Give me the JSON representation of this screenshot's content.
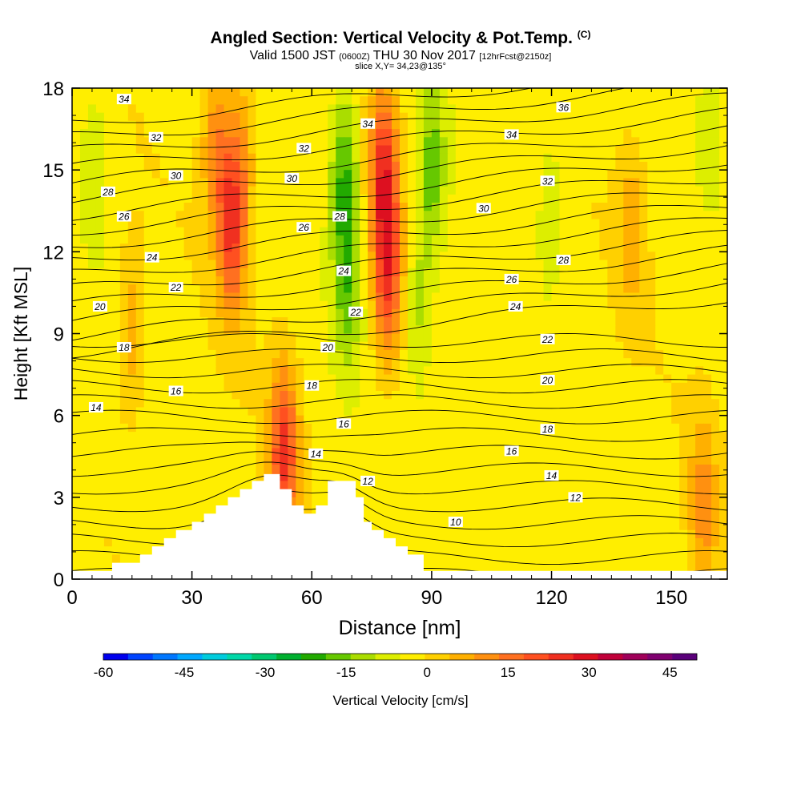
{
  "header": {
    "title": "Angled Section: Vertical Velocity & Pot.Temp.",
    "title_units": "(C)",
    "valid_prefix": "Valid 1500 JST",
    "valid_utc": "(0600Z)",
    "valid_date": "THU 30 Nov 2017",
    "forecast": "[12hrFcst@2150z]",
    "slice": "slice X,Y= 34,23@135°"
  },
  "chart_data": {
    "type": "heatmap",
    "xlabel": "Distance [nm]",
    "ylabel": "Height [Kft MSL]",
    "xlim": [
      0,
      164
    ],
    "ylim": [
      0,
      18
    ],
    "x_ticks": [
      0,
      30,
      60,
      90,
      120,
      150
    ],
    "y_ticks": [
      0,
      3,
      6,
      9,
      12,
      15,
      18
    ],
    "colorbar": {
      "label": "Vertical Velocity [cm/s]",
      "ticks": [
        -60,
        -45,
        -30,
        -15,
        0,
        15,
        30,
        45
      ],
      "range": [
        -60,
        50
      ],
      "step": 5,
      "colors": [
        "#0000ee",
        "#0044ff",
        "#0077ff",
        "#00a8ff",
        "#00ccdd",
        "#00d8a8",
        "#00c870",
        "#00b030",
        "#22aa00",
        "#66c800",
        "#aadd00",
        "#ddee00",
        "#ffee00",
        "#ffd000",
        "#ffb000",
        "#ff9010",
        "#ff7020",
        "#ff5020",
        "#f03020",
        "#dd1020",
        "#c0003a",
        "#a0005a",
        "#800070",
        "#5a007a"
      ]
    },
    "terrain_nm_kft": [
      [
        0,
        0.3
      ],
      [
        10,
        0.3
      ],
      [
        10,
        0.6
      ],
      [
        17,
        0.6
      ],
      [
        17,
        0.9
      ],
      [
        20,
        0.9
      ],
      [
        20,
        1.2
      ],
      [
        23,
        1.2
      ],
      [
        23,
        1.5
      ],
      [
        26,
        1.5
      ],
      [
        26,
        1.8
      ],
      [
        30,
        1.8
      ],
      [
        30,
        2.1
      ],
      [
        33,
        2.1
      ],
      [
        33,
        2.4
      ],
      [
        36,
        2.4
      ],
      [
        36,
        2.7
      ],
      [
        39,
        2.7
      ],
      [
        39,
        3.0
      ],
      [
        42,
        3.0
      ],
      [
        42,
        3.3
      ],
      [
        45,
        3.3
      ],
      [
        45,
        3.6
      ],
      [
        48,
        3.6
      ],
      [
        48,
        3.85
      ],
      [
        52,
        3.85
      ],
      [
        52,
        3.3
      ],
      [
        55,
        3.3
      ],
      [
        55,
        2.7
      ],
      [
        58,
        2.7
      ],
      [
        58,
        2.4
      ],
      [
        61,
        2.4
      ],
      [
        61,
        2.7
      ],
      [
        64,
        2.7
      ],
      [
        64,
        3.6
      ],
      [
        71,
        3.6
      ],
      [
        71,
        3.0
      ],
      [
        73,
        3.0
      ],
      [
        73,
        2.1
      ],
      [
        75,
        2.1
      ],
      [
        75,
        1.8
      ],
      [
        78,
        1.8
      ],
      [
        78,
        1.5
      ],
      [
        81,
        1.5
      ],
      [
        81,
        1.2
      ],
      [
        84,
        1.2
      ],
      [
        84,
        0.9
      ],
      [
        88,
        0.9
      ],
      [
        88,
        0.3
      ],
      [
        164,
        0.3
      ]
    ],
    "velocity_features": [
      {
        "x": 40,
        "y": 13,
        "value": 28
      },
      {
        "x": 53,
        "y": 4.6,
        "value": 28
      },
      {
        "x": 78,
        "y": 15,
        "value": 28
      },
      {
        "x": 79,
        "y": 11,
        "value": 25
      },
      {
        "x": 36,
        "y": 16,
        "value": 15
      },
      {
        "x": 158,
        "y": 2.7,
        "value": 14
      },
      {
        "x": 15,
        "y": 9,
        "value": 11
      },
      {
        "x": 68,
        "y": 15,
        "value": -18
      },
      {
        "x": 69,
        "y": 11,
        "value": -15
      },
      {
        "x": 90,
        "y": 15,
        "value": -15
      },
      {
        "x": 87,
        "y": 10,
        "value": -10
      },
      {
        "x": 6,
        "y": 15.5,
        "value": -6
      },
      {
        "x": 120,
        "y": 14,
        "value": -6
      },
      {
        "x": 160,
        "y": 17.5,
        "value": -6
      },
      {
        "x": 43,
        "y": 16,
        "value": 10
      },
      {
        "x": 140,
        "y": 13,
        "value": 10
      }
    ],
    "isotherm_labels": [
      {
        "text": "34",
        "x": 13,
        "y": 17.6
      },
      {
        "text": "32",
        "x": 21,
        "y": 16.2
      },
      {
        "text": "30",
        "x": 26,
        "y": 14.8
      },
      {
        "text": "28",
        "x": 9,
        "y": 14.2
      },
      {
        "text": "26",
        "x": 13,
        "y": 13.3
      },
      {
        "text": "24",
        "x": 20,
        "y": 11.8
      },
      {
        "text": "22",
        "x": 26,
        "y": 10.7
      },
      {
        "text": "20",
        "x": 7,
        "y": 10.0
      },
      {
        "text": "18",
        "x": 13,
        "y": 8.5
      },
      {
        "text": "16",
        "x": 26,
        "y": 6.9
      },
      {
        "text": "14",
        "x": 6,
        "y": 6.3
      },
      {
        "text": "32",
        "x": 58,
        "y": 15.8
      },
      {
        "text": "30",
        "x": 55,
        "y": 14.7
      },
      {
        "text": "26",
        "x": 58,
        "y": 12.9
      },
      {
        "text": "28",
        "x": 67,
        "y": 13.3
      },
      {
        "text": "34",
        "x": 74,
        "y": 16.7
      },
      {
        "text": "24",
        "x": 68,
        "y": 11.3
      },
      {
        "text": "22",
        "x": 71,
        "y": 9.8
      },
      {
        "text": "20",
        "x": 64,
        "y": 8.5
      },
      {
        "text": "18",
        "x": 60,
        "y": 7.1
      },
      {
        "text": "16",
        "x": 68,
        "y": 5.7
      },
      {
        "text": "14",
        "x": 61,
        "y": 4.6
      },
      {
        "text": "12",
        "x": 74,
        "y": 3.6
      },
      {
        "text": "10",
        "x": 96,
        "y": 2.1
      },
      {
        "text": "30",
        "x": 103,
        "y": 13.6
      },
      {
        "text": "34",
        "x": 110,
        "y": 16.3
      },
      {
        "text": "36",
        "x": 123,
        "y": 17.3
      },
      {
        "text": "32",
        "x": 119,
        "y": 14.6
      },
      {
        "text": "28",
        "x": 123,
        "y": 11.7
      },
      {
        "text": "26",
        "x": 110,
        "y": 11.0
      },
      {
        "text": "24",
        "x": 111,
        "y": 10.0
      },
      {
        "text": "22",
        "x": 119,
        "y": 8.8
      },
      {
        "text": "20",
        "x": 119,
        "y": 7.3
      },
      {
        "text": "18",
        "x": 119,
        "y": 5.5
      },
      {
        "text": "16",
        "x": 110,
        "y": 4.7
      },
      {
        "text": "14",
        "x": 120,
        "y": 3.8
      },
      {
        "text": "12",
        "x": 126,
        "y": 3.0
      }
    ]
  }
}
